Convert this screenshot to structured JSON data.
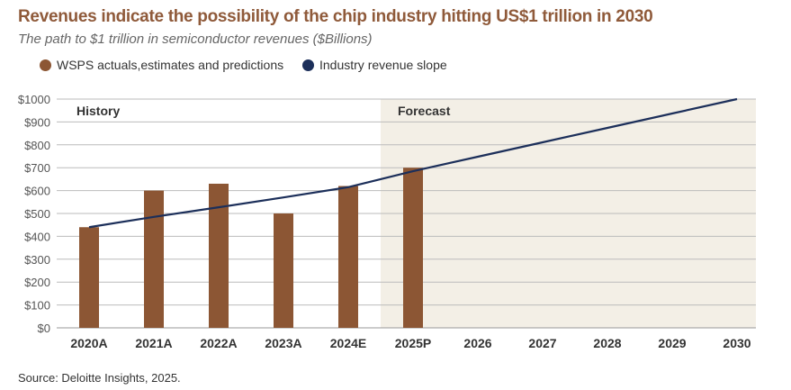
{
  "chart_data": {
    "type": "bar",
    "title": "Revenues indicate the possibility of the chip industry hitting US$1 trillion in 2030",
    "subtitle": "The path to $1 trillion in semiconductor revenues ($Billions)",
    "categories": [
      "2020A",
      "2021A",
      "2022A",
      "2023A",
      "2024E",
      "2025P",
      "2026",
      "2027",
      "2028",
      "2029",
      "2030"
    ],
    "series": [
      {
        "name": "WSPS actuals,estimates and predictions",
        "type": "bar",
        "color": "#8c5634",
        "values": [
          440,
          600,
          630,
          500,
          620,
          700,
          null,
          null,
          null,
          null,
          null
        ]
      },
      {
        "name": "Industry revenue slope",
        "type": "line",
        "color": "#1c2f5a",
        "values": [
          440,
          485,
          527,
          570,
          615,
          685,
          748,
          811,
          874,
          937,
          1000
        ]
      }
    ],
    "yticks": [
      "$0",
      "$100",
      "$200",
      "$300",
      "$400",
      "$500",
      "$600",
      "$700",
      "$800",
      "$900",
      "$1000"
    ],
    "ylim": [
      0,
      1000
    ],
    "xlabel": "",
    "ylabel": "",
    "grid": true,
    "legend": "top-left",
    "regions": [
      {
        "label": "History",
        "from": "2020A",
        "to": "2024E"
      },
      {
        "label": "Forecast",
        "from": "2025P",
        "to": "2030",
        "color": "#f3efe6"
      }
    ],
    "source": "Source: Deloitte Insights, 2025."
  }
}
